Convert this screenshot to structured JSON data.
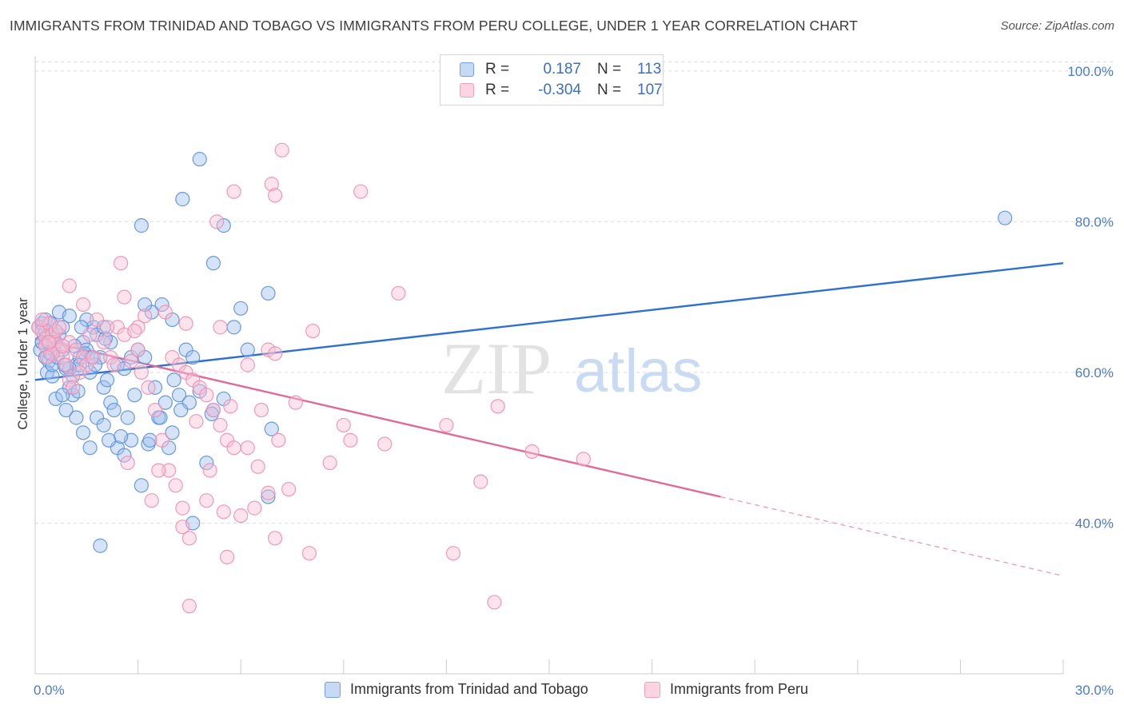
{
  "title": "IMMIGRANTS FROM TRINIDAD AND TOBAGO VS IMMIGRANTS FROM PERU COLLEGE, UNDER 1 YEAR CORRELATION CHART",
  "source": "Source: ZipAtlas.com",
  "watermark": {
    "zip": "ZIP",
    "atlas": "atlas"
  },
  "legend": {
    "r_label": "R =",
    "n_label": "N =",
    "blue": {
      "r": "0.187",
      "n": "113",
      "color": "#6fa0e8"
    },
    "pink": {
      "r": "-0.304",
      "n": "107",
      "color": "#f1a1bd"
    }
  },
  "chart_data": {
    "type": "scatter",
    "title": "IMMIGRANTS FROM TRINIDAD AND TOBAGO VS IMMIGRANTS FROM PERU COLLEGE, UNDER 1 YEAR CORRELATION CHART",
    "xlabel": "",
    "ylabel": "College, Under 1 year",
    "xlim": [
      0,
      30
    ],
    "ylim": [
      20,
      102
    ],
    "x_tick_labels": [
      "0.0%",
      "30.0%"
    ],
    "y_tick_labels": [
      "100.0%",
      "80.0%",
      "60.0%",
      "40.0%"
    ],
    "y_ticks": [
      100,
      80,
      60,
      40
    ],
    "grid": true,
    "legend_position": "top-center",
    "series": [
      {
        "name": "Immigrants from Trinidad and Tobago",
        "color": "#6fa0e8",
        "trend": {
          "x": [
            0,
            30
          ],
          "y": [
            59.0,
            74.5
          ],
          "style": "solid"
        },
        "points": [
          [
            0.1,
            66
          ],
          [
            0.2,
            64
          ],
          [
            0.15,
            63
          ],
          [
            0.3,
            62
          ],
          [
            0.4,
            61.5
          ],
          [
            0.25,
            65
          ],
          [
            0.35,
            60
          ],
          [
            0.5,
            59.5
          ],
          [
            0.45,
            62.5
          ],
          [
            0.6,
            64
          ],
          [
            0.2,
            66.5
          ],
          [
            0.3,
            67
          ],
          [
            0.5,
            61
          ],
          [
            0.7,
            65
          ],
          [
            0.8,
            63
          ],
          [
            0.9,
            60.5
          ],
          [
            1.0,
            58
          ],
          [
            1.1,
            57
          ],
          [
            0.6,
            56.5
          ],
          [
            0.9,
            55
          ],
          [
            1.2,
            61
          ],
          [
            1.3,
            62
          ],
          [
            1.4,
            64
          ],
          [
            1.5,
            63
          ],
          [
            1.6,
            60
          ],
          [
            1.7,
            66
          ],
          [
            1.8,
            65
          ],
          [
            1.9,
            62
          ],
          [
            2.0,
            58
          ],
          [
            2.1,
            59
          ],
          [
            0.7,
            68
          ],
          [
            1.0,
            67.5
          ],
          [
            1.5,
            67
          ],
          [
            2.0,
            66
          ],
          [
            2.2,
            64
          ],
          [
            2.4,
            61
          ],
          [
            2.6,
            60.5
          ],
          [
            2.8,
            62
          ],
          [
            3.0,
            63
          ],
          [
            3.2,
            62
          ],
          [
            0.8,
            57
          ],
          [
            1.2,
            54
          ],
          [
            1.4,
            52
          ],
          [
            1.6,
            50
          ],
          [
            1.8,
            54
          ],
          [
            2.0,
            53
          ],
          [
            2.2,
            56
          ],
          [
            2.4,
            50
          ],
          [
            2.6,
            49
          ],
          [
            2.8,
            51
          ],
          [
            3.1,
            45
          ],
          [
            3.3,
            50.5
          ],
          [
            3.5,
            58
          ],
          [
            3.6,
            54
          ],
          [
            3.8,
            56
          ],
          [
            4.0,
            52
          ],
          [
            4.2,
            57
          ],
          [
            4.4,
            63
          ],
          [
            4.6,
            62
          ],
          [
            3.7,
            69
          ],
          [
            3.4,
            68
          ],
          [
            3.2,
            69
          ],
          [
            4.0,
            67
          ],
          [
            4.5,
            56
          ],
          [
            4.8,
            57.5
          ],
          [
            5.0,
            48
          ],
          [
            5.2,
            55
          ],
          [
            5.5,
            56.5
          ],
          [
            5.8,
            66
          ],
          [
            6.0,
            68.5
          ],
          [
            4.3,
            83
          ],
          [
            3.1,
            79.5
          ],
          [
            4.8,
            88.3
          ],
          [
            5.5,
            79.5
          ],
          [
            5.2,
            74.5
          ],
          [
            6.2,
            63
          ],
          [
            6.8,
            70.5
          ],
          [
            6.9,
            52.5
          ],
          [
            6.8,
            43.5
          ],
          [
            4.6,
            40
          ],
          [
            1.9,
            37
          ],
          [
            0.6,
            65.5
          ],
          [
            0.8,
            66
          ],
          [
            1.1,
            59.5
          ],
          [
            1.3,
            61
          ],
          [
            2.3,
            55
          ],
          [
            2.5,
            51.5
          ],
          [
            2.7,
            54
          ],
          [
            2.9,
            57
          ],
          [
            3.9,
            50
          ],
          [
            1.0,
            60.5
          ],
          [
            0.4,
            64
          ],
          [
            0.55,
            63
          ],
          [
            0.65,
            62
          ],
          [
            1.15,
            63.5
          ],
          [
            1.45,
            62.5
          ],
          [
            1.75,
            61
          ],
          [
            2.05,
            64.5
          ],
          [
            0.3,
            65.5
          ],
          [
            0.2,
            64
          ],
          [
            1.35,
            66
          ],
          [
            1.65,
            62
          ],
          [
            0.85,
            61
          ],
          [
            1.25,
            57.5
          ],
          [
            2.15,
            51
          ],
          [
            3.35,
            51
          ],
          [
            3.65,
            54
          ],
          [
            4.05,
            59
          ],
          [
            4.25,
            55
          ],
          [
            5.15,
            54.5
          ],
          [
            28.3,
            80.5
          ],
          [
            0.45,
            66.5
          ],
          [
            0.55,
            64
          ]
        ]
      },
      {
        "name": "Immigrants from Peru",
        "color": "#f1a1bd",
        "trend": {
          "x": [
            0,
            20
          ],
          "y": [
            64.5,
            43.5
          ],
          "style": "solid"
        },
        "trend_extension": {
          "x": [
            20,
            30
          ],
          "y": [
            43.5,
            33.0
          ],
          "style": "dashed"
        },
        "points": [
          [
            0.1,
            66
          ],
          [
            0.2,
            65.5
          ],
          [
            0.3,
            64.5
          ],
          [
            0.4,
            66.5
          ],
          [
            0.5,
            65
          ],
          [
            0.6,
            64
          ],
          [
            0.7,
            63
          ],
          [
            0.8,
            62
          ],
          [
            0.9,
            61
          ],
          [
            1.0,
            59
          ],
          [
            0.2,
            67
          ],
          [
            0.3,
            63.5
          ],
          [
            0.5,
            62.5
          ],
          [
            0.6,
            65.5
          ],
          [
            0.7,
            66
          ],
          [
            1.0,
            64
          ],
          [
            1.2,
            63
          ],
          [
            1.4,
            62
          ],
          [
            1.5,
            61
          ],
          [
            1.6,
            65
          ],
          [
            1.0,
            71.5
          ],
          [
            1.4,
            69
          ],
          [
            1.8,
            67
          ],
          [
            2.0,
            64
          ],
          [
            2.2,
            62
          ],
          [
            2.4,
            66
          ],
          [
            2.6,
            65
          ],
          [
            2.8,
            61.5
          ],
          [
            3.0,
            63
          ],
          [
            3.2,
            67.5
          ],
          [
            2.5,
            74.5
          ],
          [
            2.6,
            70
          ],
          [
            3.0,
            66
          ],
          [
            3.1,
            60
          ],
          [
            3.3,
            58
          ],
          [
            3.5,
            55
          ],
          [
            3.7,
            51
          ],
          [
            3.9,
            47
          ],
          [
            4.1,
            45
          ],
          [
            4.3,
            42
          ],
          [
            4.0,
            62
          ],
          [
            4.2,
            61
          ],
          [
            4.4,
            60
          ],
          [
            4.6,
            59
          ],
          [
            4.8,
            58
          ],
          [
            5.0,
            57
          ],
          [
            5.2,
            55
          ],
          [
            5.4,
            53
          ],
          [
            5.6,
            51
          ],
          [
            5.8,
            50
          ],
          [
            4.5,
            38
          ],
          [
            5.0,
            43
          ],
          [
            4.3,
            39.5
          ],
          [
            5.5,
            41.5
          ],
          [
            5.6,
            35.5
          ],
          [
            6.0,
            41
          ],
          [
            6.2,
            50
          ],
          [
            6.5,
            47.5
          ],
          [
            6.8,
            44
          ],
          [
            7.0,
            38
          ],
          [
            7.1,
            51
          ],
          [
            7.4,
            44.5
          ],
          [
            8.0,
            36
          ],
          [
            8.1,
            65.5
          ],
          [
            9.0,
            53
          ],
          [
            9.2,
            51
          ],
          [
            10.2,
            50.5
          ],
          [
            12.0,
            53
          ],
          [
            13.0,
            45.5
          ],
          [
            13.5,
            55.5
          ],
          [
            14.5,
            49.5
          ],
          [
            16.0,
            48.5
          ],
          [
            12.2,
            36
          ],
          [
            13.4,
            29.5
          ],
          [
            4.5,
            29
          ],
          [
            7.2,
            89.5
          ],
          [
            6.9,
            85
          ],
          [
            7.0,
            83.5
          ],
          [
            9.5,
            84
          ],
          [
            5.8,
            84
          ],
          [
            5.3,
            80
          ],
          [
            10.6,
            70.5
          ],
          [
            5.7,
            55.5
          ],
          [
            6.8,
            63
          ],
          [
            7.0,
            62.5
          ],
          [
            6.2,
            61
          ],
          [
            5.4,
            66
          ],
          [
            4.4,
            66.5
          ],
          [
            3.8,
            68
          ],
          [
            2.9,
            65.5
          ],
          [
            2.1,
            66
          ],
          [
            1.7,
            62
          ],
          [
            1.3,
            60
          ],
          [
            1.1,
            58
          ],
          [
            0.8,
            63.5
          ],
          [
            0.4,
            64
          ],
          [
            0.35,
            62
          ],
          [
            2.3,
            61
          ],
          [
            2.7,
            48
          ],
          [
            3.4,
            43
          ],
          [
            3.6,
            47
          ],
          [
            4.7,
            53.5
          ],
          [
            5.1,
            47
          ],
          [
            6.4,
            42
          ],
          [
            6.6,
            55
          ],
          [
            7.6,
            56
          ],
          [
            8.6,
            48
          ]
        ]
      }
    ]
  }
}
